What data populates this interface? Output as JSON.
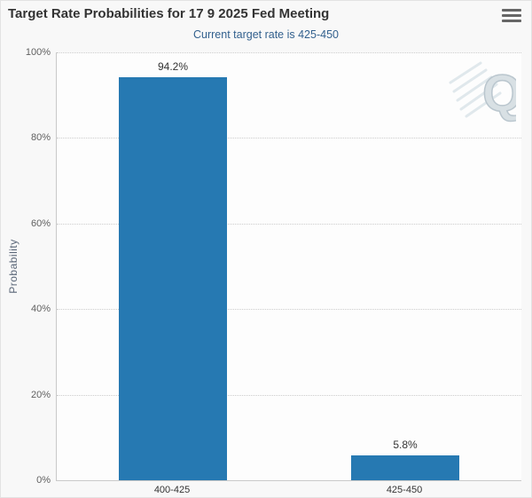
{
  "chart_data": {
    "type": "bar",
    "title": "Target Rate Probabilities for 17 9 2025 Fed Meeting",
    "subtitle": "Current target rate is 425-450",
    "categories": [
      "400-425",
      "425-450"
    ],
    "values": [
      94.2,
      5.8
    ],
    "data_labels": [
      "94.2%",
      "5.8%"
    ],
    "xlabel": "",
    "ylabel": "Probability",
    "ylim": [
      0,
      100
    ],
    "yticks": [
      "0%",
      "20%",
      "40%",
      "60%",
      "80%",
      "100%"
    ],
    "grid": "horizontal-dotted",
    "legend": "none",
    "watermark_letter": "Q"
  },
  "menu": {
    "icon": "hamburger-menu-icon"
  },
  "colors": {
    "bar": "#2679b2",
    "subtitle_text": "#33618e",
    "title_text": "#333333",
    "axis_label": "#606060",
    "background": "#f8f8f8"
  }
}
